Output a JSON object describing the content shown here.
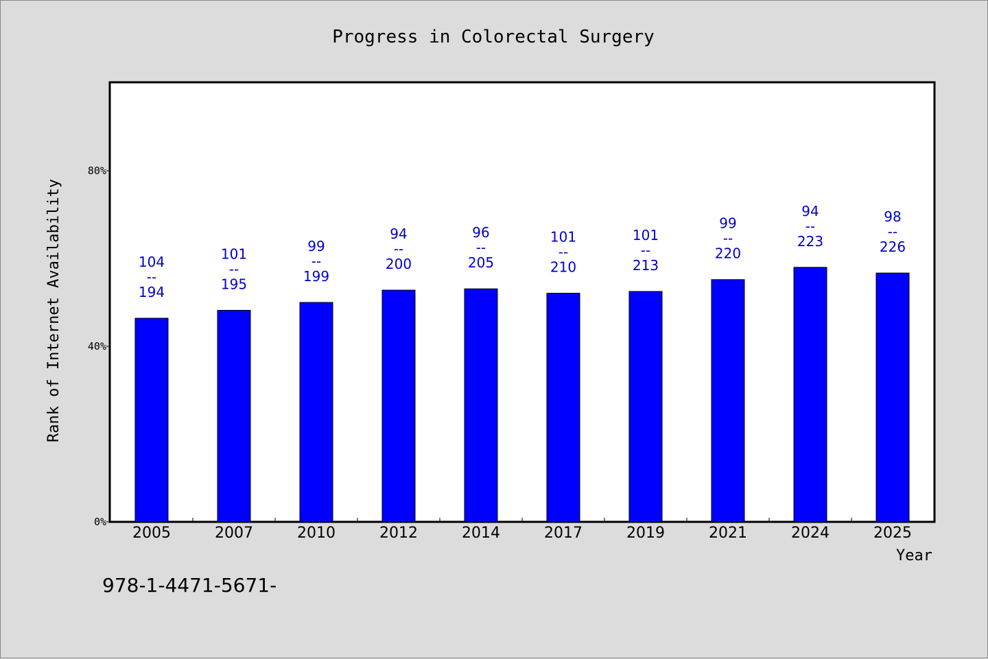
{
  "chart_data": {
    "type": "bar",
    "title": "Progress in Colorectal Surgery",
    "xlabel": "Year",
    "ylabel": "Rank of Internet Availability",
    "ylim": [
      0,
      100
    ],
    "yticks": [
      0,
      40,
      80
    ],
    "ytick_labels": [
      "0%",
      "40%",
      "80%"
    ],
    "grid": false,
    "bar_color": "#0000ff",
    "label_color": "#0000cc",
    "categories": [
      "2005",
      "2007",
      "2010",
      "2012",
      "2014",
      "2017",
      "2019",
      "2021",
      "2024",
      "2025"
    ],
    "values": [
      46.4,
      48.2,
      50.0,
      52.8,
      53.1,
      52.1,
      52.5,
      55.2,
      58.0,
      56.7
    ],
    "bar_labels": [
      {
        "top": "104",
        "sep": "--",
        "bottom": "194"
      },
      {
        "top": "101",
        "sep": "--",
        "bottom": "195"
      },
      {
        "top": "99",
        "sep": "--",
        "bottom": "199"
      },
      {
        "top": "94",
        "sep": "--",
        "bottom": "200"
      },
      {
        "top": "96",
        "sep": "--",
        "bottom": "205"
      },
      {
        "top": "101",
        "sep": "--",
        "bottom": "210"
      },
      {
        "top": "101",
        "sep": "--",
        "bottom": "213"
      },
      {
        "top": "99",
        "sep": "--",
        "bottom": "220"
      },
      {
        "top": "94",
        "sep": "--",
        "bottom": "223"
      },
      {
        "top": "98",
        "sep": "--",
        "bottom": "226"
      }
    ]
  },
  "footer": {
    "code": "978-1-4471-5671-"
  }
}
